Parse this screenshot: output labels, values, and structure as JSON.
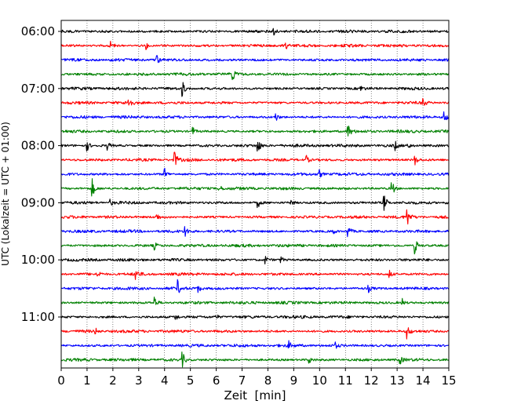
{
  "chart_data": {
    "type": "line",
    "title": "",
    "xlabel": "Zeit  [min]",
    "ylabel": "UTC (Lokalzeit = UTC + 01:00)",
    "xlim": [
      0,
      15
    ],
    "x_ticks": [
      "0",
      "1",
      "2",
      "3",
      "4",
      "5",
      "6",
      "7",
      "8",
      "9",
      "10",
      "11",
      "12",
      "13",
      "14",
      "15"
    ],
    "y_ticks": [
      "06:00",
      "07:00",
      "08:00",
      "09:00",
      "10:00",
      "11:00"
    ],
    "grid": "vertical dotted at each minute",
    "trace_start": "06:00",
    "trace_interval_min": 15,
    "trace_count": 24,
    "colors": [
      "#000000",
      "#ff0000",
      "#0000ff",
      "#008000"
    ],
    "traces": [
      {
        "time": "06:00",
        "color": "#000000",
        "events": [
          [
            8.2,
            6
          ]
        ]
      },
      {
        "time": "06:15",
        "color": "#ff0000",
        "events": [
          [
            1.9,
            11
          ],
          [
            3.3,
            4
          ],
          [
            8.7,
            4
          ]
        ]
      },
      {
        "time": "06:30",
        "color": "#0000ff",
        "events": [
          [
            3.7,
            6
          ]
        ]
      },
      {
        "time": "06:45",
        "color": "#008000",
        "events": [
          [
            6.6,
            11
          ]
        ]
      },
      {
        "time": "07:00",
        "color": "#000000",
        "events": [
          [
            4.7,
            9
          ],
          [
            11.6,
            3
          ]
        ]
      },
      {
        "time": "07:15",
        "color": "#ff0000",
        "events": [
          [
            2.6,
            10
          ],
          [
            14.0,
            6
          ]
        ]
      },
      {
        "time": "07:30",
        "color": "#0000ff",
        "events": [
          [
            8.3,
            6
          ],
          [
            14.8,
            10
          ]
        ]
      },
      {
        "time": "07:45",
        "color": "#008000",
        "events": [
          [
            5.1,
            5
          ],
          [
            11.1,
            10
          ]
        ]
      },
      {
        "time": "08:00",
        "color": "#000000",
        "events": [
          [
            1.0,
            7
          ],
          [
            1.8,
            5
          ],
          [
            7.6,
            11
          ],
          [
            12.9,
            8
          ],
          [
            13.4,
            5
          ]
        ]
      },
      {
        "time": "08:15",
        "color": "#ff0000",
        "events": [
          [
            4.4,
            10
          ],
          [
            9.5,
            5
          ],
          [
            13.7,
            6
          ]
        ]
      },
      {
        "time": "08:30",
        "color": "#0000ff",
        "events": [
          [
            4.0,
            8
          ],
          [
            10.0,
            5
          ]
        ]
      },
      {
        "time": "08:45",
        "color": "#008000",
        "events": [
          [
            1.2,
            12
          ],
          [
            6.1,
            5
          ],
          [
            12.8,
            11
          ]
        ]
      },
      {
        "time": "09:00",
        "color": "#000000",
        "events": [
          [
            1.9,
            4
          ],
          [
            7.6,
            8
          ],
          [
            8.9,
            4
          ],
          [
            12.5,
            12
          ]
        ]
      },
      {
        "time": "09:15",
        "color": "#ff0000",
        "events": [
          [
            3.7,
            5
          ],
          [
            13.4,
            11
          ]
        ]
      },
      {
        "time": "09:30",
        "color": "#0000ff",
        "events": [
          [
            4.8,
            7
          ],
          [
            10.5,
            5
          ],
          [
            11.1,
            10
          ]
        ]
      },
      {
        "time": "09:45",
        "color": "#008000",
        "events": [
          [
            3.6,
            5
          ],
          [
            13.7,
            11
          ]
        ]
      },
      {
        "time": "10:00",
        "color": "#000000",
        "events": [
          [
            7.9,
            5
          ],
          [
            8.5,
            4
          ]
        ]
      },
      {
        "time": "10:15",
        "color": "#ff0000",
        "events": [
          [
            1.4,
            6
          ],
          [
            2.9,
            8
          ],
          [
            12.7,
            6
          ]
        ]
      },
      {
        "time": "10:30",
        "color": "#0000ff",
        "events": [
          [
            4.5,
            10
          ],
          [
            5.3,
            6
          ],
          [
            11.9,
            4
          ]
        ]
      },
      {
        "time": "10:45",
        "color": "#008000",
        "events": [
          [
            3.6,
            8
          ],
          [
            13.2,
            5
          ]
        ]
      },
      {
        "time": "11:00",
        "color": "#000000",
        "events": [
          [
            4.4,
            7
          ],
          [
            6.0,
            3
          ]
        ]
      },
      {
        "time": "11:15",
        "color": "#ff0000",
        "events": [
          [
            1.3,
            5
          ],
          [
            13.4,
            9
          ]
        ]
      },
      {
        "time": "11:30",
        "color": "#0000ff",
        "events": [
          [
            8.8,
            5
          ],
          [
            10.6,
            4
          ]
        ]
      },
      {
        "time": "11:45",
        "color": "#008000",
        "events": [
          [
            4.7,
            9
          ],
          [
            9.6,
            4
          ],
          [
            13.1,
            6
          ]
        ]
      }
    ]
  }
}
